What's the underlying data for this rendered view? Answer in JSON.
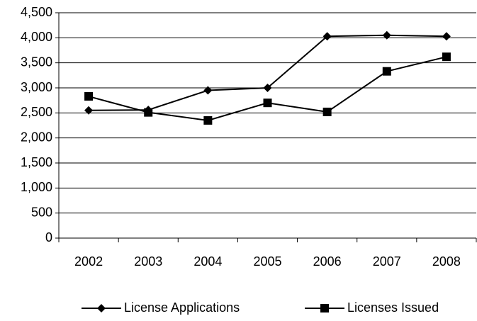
{
  "chart_data": {
    "type": "line",
    "categories": [
      "2002",
      "2003",
      "2004",
      "2005",
      "2006",
      "2007",
      "2008"
    ],
    "series": [
      {
        "name": "License Applications",
        "color": "#000000",
        "marker": "diamond",
        "values": [
          2550,
          2560,
          2950,
          3000,
          4030,
          4050,
          4030
        ]
      },
      {
        "name": "Licenses Issued",
        "color": "#000000",
        "marker": "square",
        "values": [
          2830,
          2510,
          2350,
          2700,
          2520,
          3330,
          3620
        ]
      }
    ],
    "ylim": [
      0,
      4500
    ],
    "yticks": [
      0,
      500,
      {
        "value": 1000,
        "label": "1,000"
      },
      {
        "value": 1500,
        "label": "1,500"
      },
      {
        "value": 2000,
        "label": "2,000"
      },
      {
        "value": 2500,
        "label": "2,500"
      },
      {
        "value": 3000,
        "label": "3,000"
      },
      {
        "value": 3500,
        "label": "3,500"
      },
      {
        "value": 4000,
        "label": "4,000"
      },
      {
        "value": 4500,
        "label": "4,500"
      }
    ],
    "grid": true,
    "legend": "bottom"
  }
}
